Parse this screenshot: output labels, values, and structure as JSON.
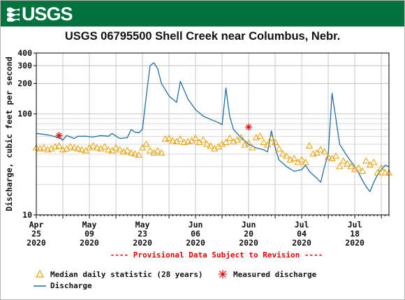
{
  "header": {
    "agency": "USGS",
    "logo_icon": "usgs-wave-logo-icon",
    "banner_color": "#02723e"
  },
  "chart_data": {
    "type": "line",
    "title": "USGS 06795500 Shell Creek near Columbus, Nebr.",
    "xlabel": "",
    "ylabel": "Discharge, cubic feet per second",
    "y_scale": "log",
    "ylim": [
      10,
      400
    ],
    "xlim": [
      "2020-04-25",
      "2020-07-27"
    ],
    "grid": true,
    "y_ticks": [
      {
        "value": 10,
        "label": "10"
      },
      {
        "value": 100,
        "label": "100"
      },
      {
        "value": 200,
        "label": "200"
      },
      {
        "value": 300,
        "label": "300"
      },
      {
        "value": 400,
        "label": "400"
      }
    ],
    "x_ticks": [
      {
        "date": "2020-04-25",
        "label": [
          "Apr",
          "25",
          "2020"
        ]
      },
      {
        "date": "2020-05-09",
        "label": [
          "May",
          "09",
          "2020"
        ]
      },
      {
        "date": "2020-05-23",
        "label": [
          "May",
          "23",
          "2020"
        ]
      },
      {
        "date": "2020-06-06",
        "label": [
          "Jun",
          "06",
          "2020"
        ]
      },
      {
        "date": "2020-06-20",
        "label": [
          "Jun",
          "20",
          "2020"
        ]
      },
      {
        "date": "2020-07-04",
        "label": [
          "Jul",
          "04",
          "2020"
        ]
      },
      {
        "date": "2020-07-18",
        "label": [
          "Jul",
          "18",
          "2020"
        ]
      }
    ],
    "provisional_note": "---- Provisional Data Subject to Revision ----",
    "series": [
      {
        "name": "Discharge",
        "style": "line",
        "color": "#1f6fa6",
        "points": [
          [
            "2020-04-25",
            64
          ],
          [
            "2020-04-28",
            62
          ],
          [
            "2020-05-01",
            58
          ],
          [
            "2020-05-02",
            55
          ],
          [
            "2020-05-03",
            61
          ],
          [
            "2020-05-05",
            57
          ],
          [
            "2020-05-06",
            60
          ],
          [
            "2020-05-08",
            60
          ],
          [
            "2020-05-10",
            59
          ],
          [
            "2020-05-12",
            61
          ],
          [
            "2020-05-14",
            60
          ],
          [
            "2020-05-15",
            64
          ],
          [
            "2020-05-17",
            57
          ],
          [
            "2020-05-19",
            58
          ],
          [
            "2020-05-20",
            70
          ],
          [
            "2020-05-21",
            66
          ],
          [
            "2020-05-22",
            65
          ],
          [
            "2020-05-23",
            70
          ],
          [
            "2020-05-24",
            150
          ],
          [
            "2020-05-25",
            300
          ],
          [
            "2020-05-26",
            320
          ],
          [
            "2020-05-27",
            280
          ],
          [
            "2020-05-28",
            200
          ],
          [
            "2020-05-30",
            150
          ],
          [
            "2020-06-01",
            130
          ],
          [
            "2020-06-02",
            210
          ],
          [
            "2020-06-04",
            140
          ],
          [
            "2020-06-06",
            110
          ],
          [
            "2020-06-08",
            95
          ],
          [
            "2020-06-10",
            88
          ],
          [
            "2020-06-12",
            82
          ],
          [
            "2020-06-13",
            78
          ],
          [
            "2020-06-14",
            180
          ],
          [
            "2020-06-15",
            95
          ],
          [
            "2020-06-16",
            70
          ],
          [
            "2020-06-18",
            58
          ],
          [
            "2020-06-20",
            50
          ],
          [
            "2020-06-22",
            46
          ],
          [
            "2020-06-24",
            44
          ],
          [
            "2020-06-25",
            42
          ],
          [
            "2020-06-26",
            68
          ],
          [
            "2020-06-27",
            46
          ],
          [
            "2020-06-28",
            35
          ],
          [
            "2020-06-30",
            30
          ],
          [
            "2020-07-02",
            27
          ],
          [
            "2020-07-04",
            28
          ],
          [
            "2020-07-05",
            31
          ],
          [
            "2020-07-06",
            27
          ],
          [
            "2020-07-08",
            23
          ],
          [
            "2020-07-09",
            21
          ],
          [
            "2020-07-10",
            30
          ],
          [
            "2020-07-11",
            40
          ],
          [
            "2020-07-12",
            160
          ],
          [
            "2020-07-13",
            90
          ],
          [
            "2020-07-14",
            50
          ],
          [
            "2020-07-16",
            38
          ],
          [
            "2020-07-18",
            30
          ],
          [
            "2020-07-19",
            26
          ],
          [
            "2020-07-20",
            22
          ],
          [
            "2020-07-21",
            19
          ],
          [
            "2020-07-22",
            17
          ],
          [
            "2020-07-23",
            21
          ],
          [
            "2020-07-24",
            25
          ],
          [
            "2020-07-25",
            28
          ],
          [
            "2020-07-26",
            31
          ],
          [
            "2020-07-27",
            30
          ]
        ]
      },
      {
        "name": "Median daily statistic (28 years)",
        "style": "triangle",
        "color": "#e8a000",
        "points": [
          [
            "2020-04-25",
            46
          ],
          [
            "2020-04-26",
            45
          ],
          [
            "2020-04-27",
            46
          ],
          [
            "2020-04-28",
            44
          ],
          [
            "2020-04-29",
            45
          ],
          [
            "2020-04-30",
            47
          ],
          [
            "2020-05-01",
            48
          ],
          [
            "2020-05-02",
            44
          ],
          [
            "2020-05-03",
            45
          ],
          [
            "2020-05-04",
            47
          ],
          [
            "2020-05-05",
            46
          ],
          [
            "2020-05-06",
            45
          ],
          [
            "2020-05-07",
            44
          ],
          [
            "2020-05-08",
            43
          ],
          [
            "2020-05-09",
            46
          ],
          [
            "2020-05-10",
            48
          ],
          [
            "2020-05-11",
            46
          ],
          [
            "2020-05-12",
            45
          ],
          [
            "2020-05-13",
            47
          ],
          [
            "2020-05-14",
            44
          ],
          [
            "2020-05-15",
            43
          ],
          [
            "2020-05-16",
            46
          ],
          [
            "2020-05-17",
            44
          ],
          [
            "2020-05-18",
            42
          ],
          [
            "2020-05-19",
            43
          ],
          [
            "2020-05-20",
            41
          ],
          [
            "2020-05-21",
            40
          ],
          [
            "2020-05-22",
            39
          ],
          [
            "2020-05-23",
            46
          ],
          [
            "2020-05-24",
            50
          ],
          [
            "2020-05-25",
            43
          ],
          [
            "2020-05-26",
            41
          ],
          [
            "2020-05-27",
            43
          ],
          [
            "2020-05-28",
            41
          ],
          [
            "2020-05-29",
            56
          ],
          [
            "2020-05-30",
            57
          ],
          [
            "2020-05-31",
            54
          ],
          [
            "2020-06-01",
            53
          ],
          [
            "2020-06-02",
            56
          ],
          [
            "2020-06-03",
            52
          ],
          [
            "2020-06-04",
            53
          ],
          [
            "2020-06-05",
            54
          ],
          [
            "2020-06-06",
            57
          ],
          [
            "2020-06-07",
            52
          ],
          [
            "2020-06-08",
            55
          ],
          [
            "2020-06-09",
            50
          ],
          [
            "2020-06-10",
            48
          ],
          [
            "2020-06-11",
            45
          ],
          [
            "2020-06-12",
            47
          ],
          [
            "2020-06-13",
            50
          ],
          [
            "2020-06-14",
            52
          ],
          [
            "2020-06-15",
            57
          ],
          [
            "2020-06-16",
            53
          ],
          [
            "2020-06-17",
            55
          ],
          [
            "2020-06-18",
            58
          ],
          [
            "2020-06-19",
            49
          ],
          [
            "2020-06-20",
            51
          ],
          [
            "2020-06-21",
            46
          ],
          [
            "2020-06-22",
            58
          ],
          [
            "2020-06-23",
            60
          ],
          [
            "2020-06-24",
            52
          ],
          [
            "2020-06-25",
            49
          ],
          [
            "2020-06-26",
            57
          ],
          [
            "2020-06-27",
            52
          ],
          [
            "2020-06-28",
            45
          ],
          [
            "2020-06-29",
            40
          ],
          [
            "2020-06-30",
            38
          ],
          [
            "2020-07-01",
            35
          ],
          [
            "2020-07-02",
            36
          ],
          [
            "2020-07-03",
            33
          ],
          [
            "2020-07-04",
            35
          ],
          [
            "2020-07-05",
            33
          ],
          [
            "2020-07-06",
            48
          ],
          [
            "2020-07-07",
            40
          ],
          [
            "2020-07-08",
            41
          ],
          [
            "2020-07-09",
            44
          ],
          [
            "2020-07-10",
            42
          ],
          [
            "2020-07-11",
            37
          ],
          [
            "2020-07-12",
            36
          ],
          [
            "2020-07-13",
            38
          ],
          [
            "2020-07-14",
            30
          ],
          [
            "2020-07-15",
            34
          ],
          [
            "2020-07-16",
            32
          ],
          [
            "2020-07-17",
            30
          ],
          [
            "2020-07-18",
            28
          ],
          [
            "2020-07-19",
            29
          ],
          [
            "2020-07-20",
            27
          ],
          [
            "2020-07-21",
            34
          ],
          [
            "2020-07-22",
            31
          ],
          [
            "2020-07-23",
            33
          ],
          [
            "2020-07-24",
            26
          ],
          [
            "2020-07-25",
            29
          ],
          [
            "2020-07-26",
            26
          ],
          [
            "2020-07-27",
            26
          ]
        ]
      },
      {
        "name": "Measured discharge",
        "style": "asterisk",
        "color": "#e00000",
        "points": [
          [
            "2020-05-01",
            61
          ],
          [
            "2020-06-20",
            74
          ]
        ]
      }
    ]
  },
  "legend": {
    "median_label": "Median daily statistic (28 years)",
    "measured_label": "Measured discharge",
    "discharge_label": "Discharge"
  }
}
